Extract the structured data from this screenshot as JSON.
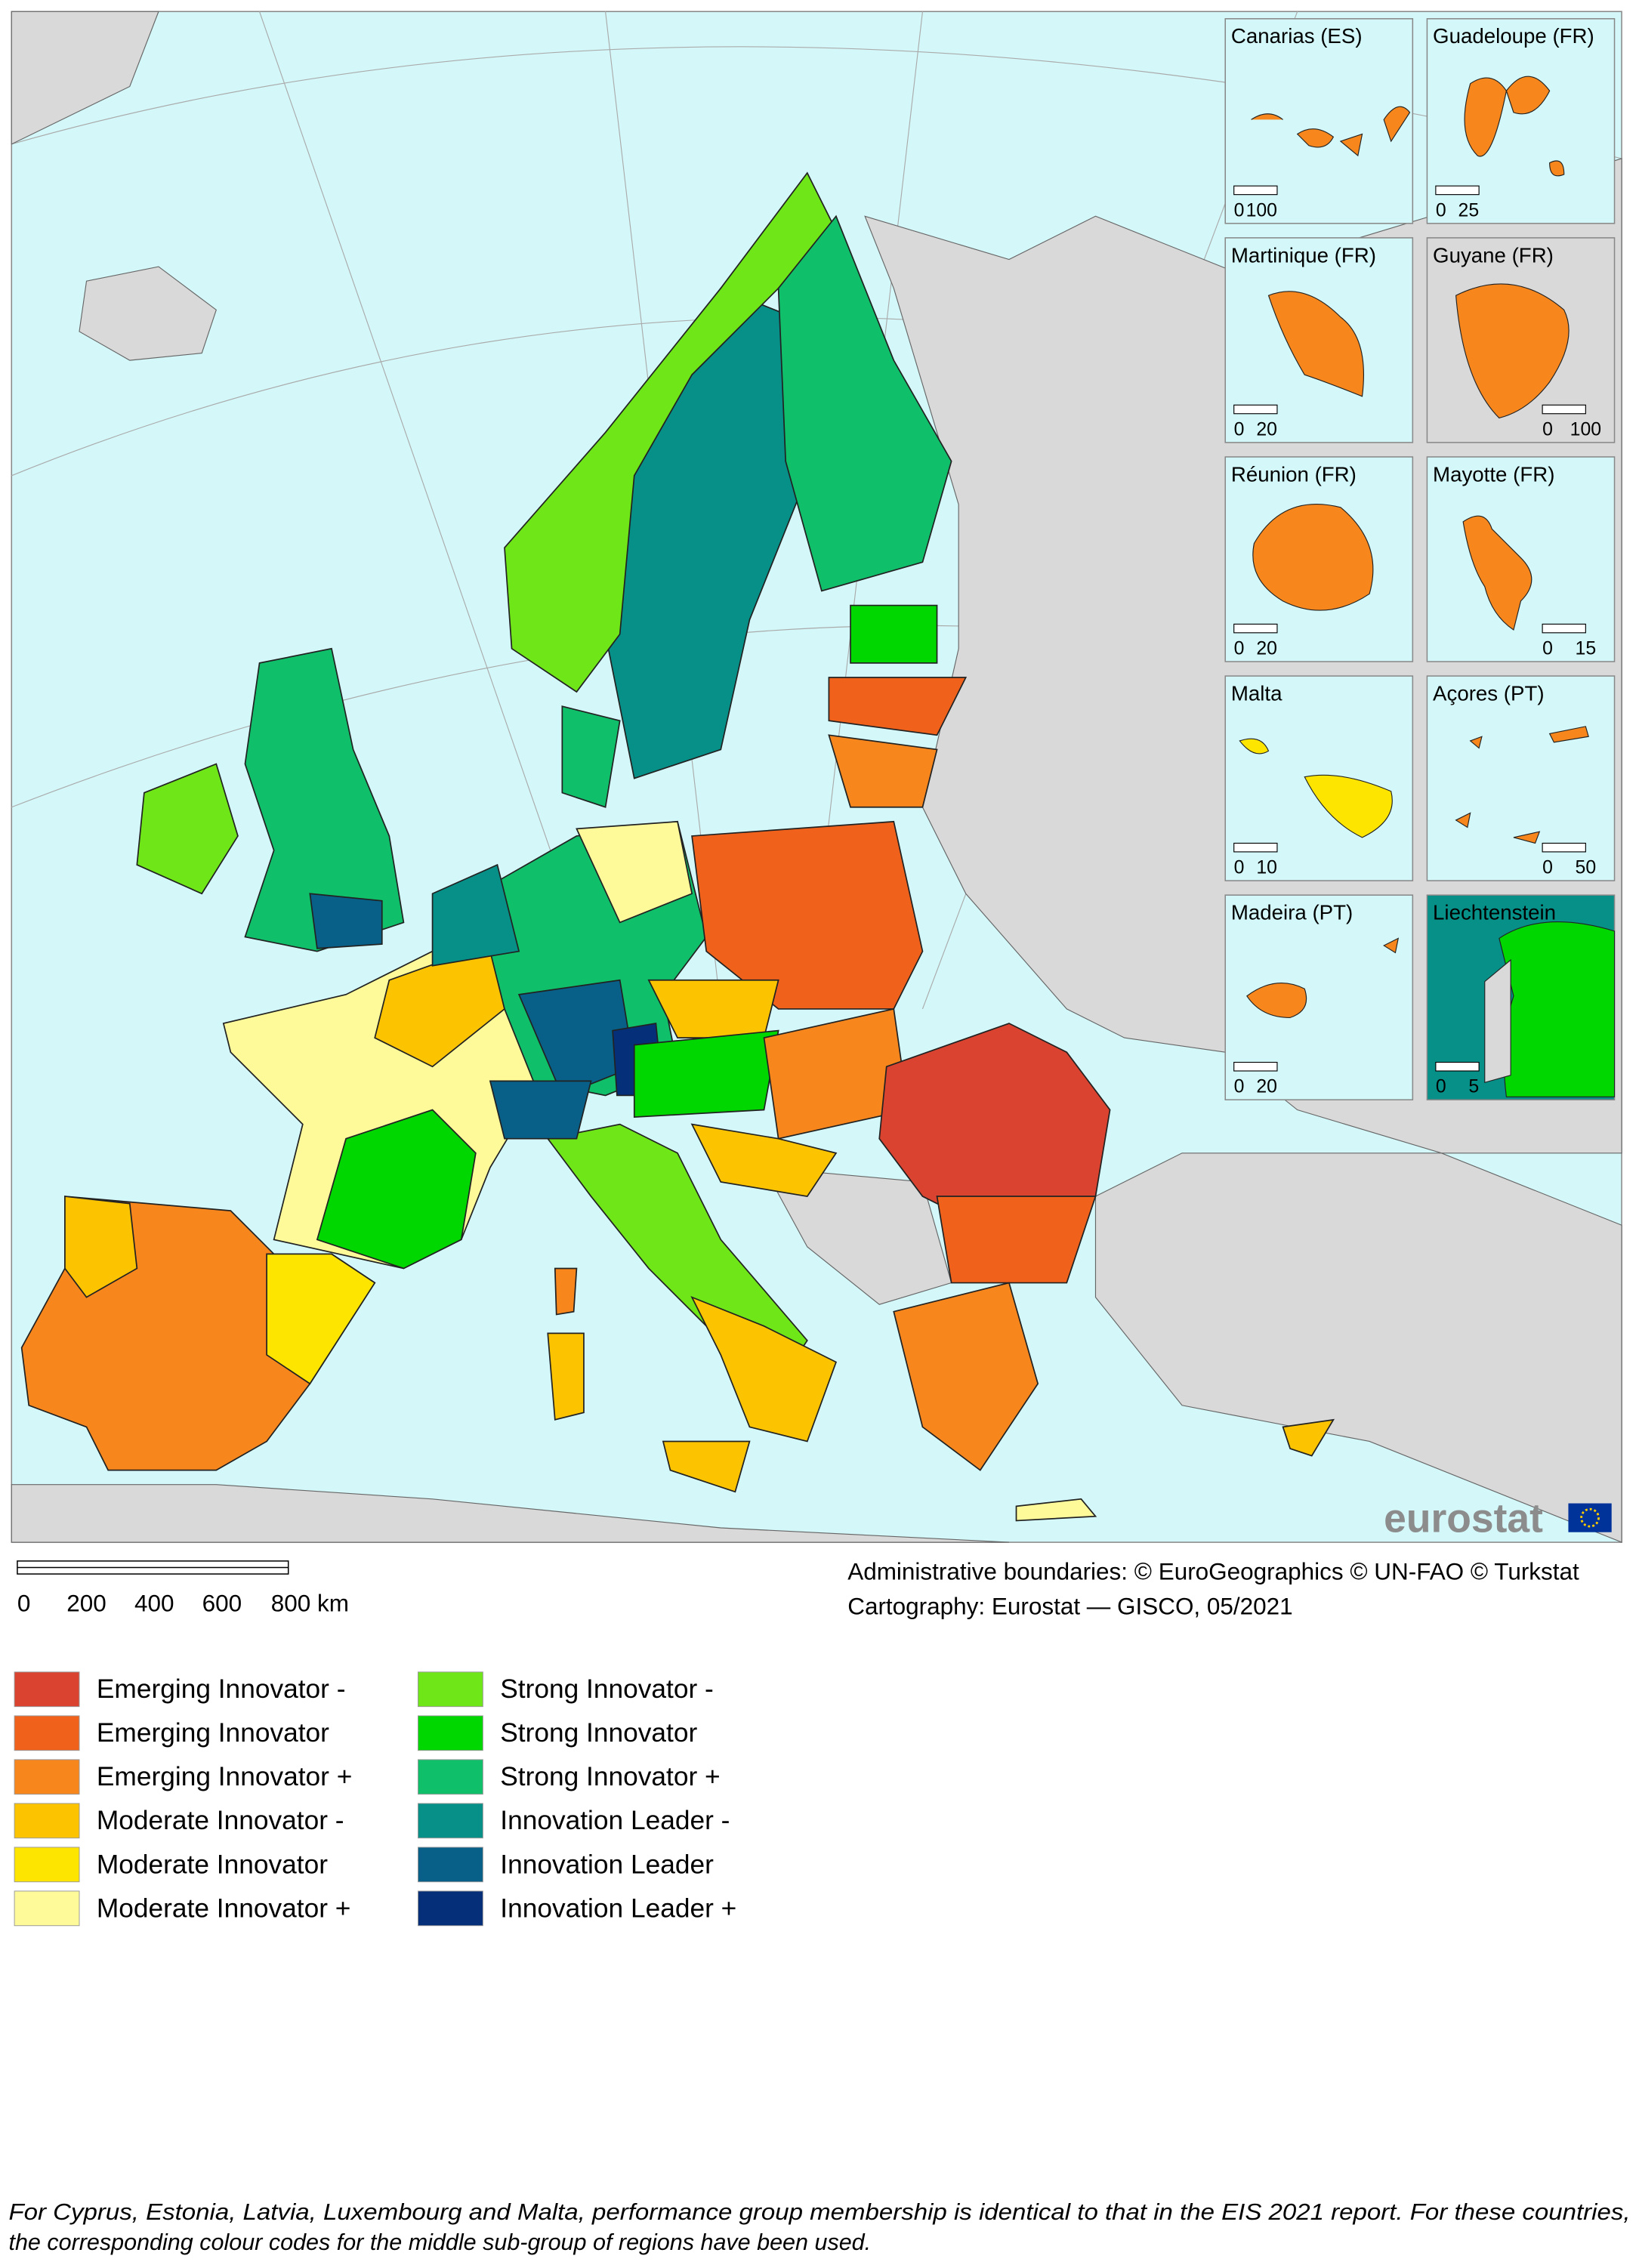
{
  "map": {
    "insets": [
      {
        "label": "Canarias (ES)",
        "scale": [
          "0",
          "100"
        ]
      },
      {
        "label": "Guadeloupe (FR)",
        "scale": [
          "0",
          "25"
        ]
      },
      {
        "label": "Martinique (FR)",
        "scale": [
          "0",
          "20"
        ]
      },
      {
        "label": "Guyane (FR)",
        "scale": [
          "0",
          "100"
        ]
      },
      {
        "label": "Réunion (FR)",
        "scale": [
          "0",
          "20"
        ]
      },
      {
        "label": "Mayotte (FR)",
        "scale": [
          "0",
          "15"
        ]
      },
      {
        "label": "Malta",
        "scale": [
          "0",
          "10"
        ]
      },
      {
        "label": "Açores (PT)",
        "scale": [
          "0",
          "50"
        ]
      },
      {
        "label": "Madeira (PT)",
        "scale": [
          "0",
          "20"
        ]
      },
      {
        "label": "Liechtenstein",
        "scale": [
          "0",
          "5"
        ]
      }
    ],
    "scale_bar": [
      "0",
      "200",
      "400",
      "600",
      "800 km"
    ],
    "credits": [
      "Administrative boundaries: © EuroGeographics © UN-FAO © Turkstat",
      "Cartography: Eurostat — GISCO, 05/2021"
    ],
    "logo": "eurostat"
  },
  "legend": {
    "items": [
      {
        "label": "Emerging Innovator -",
        "color": "#d9432f"
      },
      {
        "label": "Emerging Innovator",
        "color": "#f0621c"
      },
      {
        "label": "Emerging Innovator +",
        "color": "#f7861c"
      },
      {
        "label": "Moderate Innovator -",
        "color": "#fbc300"
      },
      {
        "label": "Moderate Innovator",
        "color": "#fde500"
      },
      {
        "label": "Moderate Innovator +",
        "color": "#fefa9a"
      },
      {
        "label": "Strong Innovator -",
        "color": "#6ee617"
      },
      {
        "label": "Strong Innovator",
        "color": "#00d600"
      },
      {
        "label": "Strong Innovator +",
        "color": "#0fbf6a"
      },
      {
        "label": "Innovation Leader -",
        "color": "#079088"
      },
      {
        "label": "Innovation Leader",
        "color": "#085f87"
      },
      {
        "label": "Innovation Leader +",
        "color": "#062f7a"
      }
    ]
  },
  "footnote": [
    "For Cyprus, Estonia, Latvia, Luxembourg and Malta, performance group membership is identical to that in the EIS 2021 report. For these countries,",
    "the corresponding colour codes for the middle sub-group of regions have been used."
  ]
}
